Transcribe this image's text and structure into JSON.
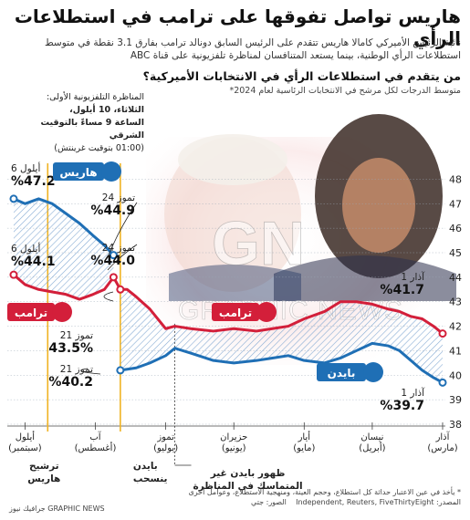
{
  "title": "هاريس تواصل تفوقها على ترامب في استطلاعات الرأي",
  "subtitle": "نائبة الرئيس الأميركي كامالا هاريس تتقدم على الرئيس السابق دونالد ترامب بفارق 3.1 نقطة في متوسط استطلاعات الرأي الوطنية، بينما يستعد المتنافسان لمناظرة تلفزيونية على قناة ABC",
  "question": "من يتقدم في استطلاعات الرأي في الانتخابات الأميركية؟",
  "chart_subtitle": "متوسط الدرجات لكل مرشح في الانتخابات الرئاسية لعام 2024*",
  "debate_note": {
    "line1": "المناظرة التلفزيونية الأولى:",
    "line2": "الثلاثاء، 10 أيلول،",
    "line3": "الساعة 9 مساءً بالتوقيت الشرقي",
    "line4": "(01:00 بتوقيت غرينتش)"
  },
  "colors": {
    "harris": "#1f6fb5",
    "trump": "#d31f3a",
    "biden": "#1f6fb5",
    "event_line": "#f0b323",
    "hatch": "#7aa3cf"
  },
  "chart_data": {
    "type": "line",
    "x_axis": "date (right = March 2024, left = September 2024)",
    "ylim": [
      38,
      48.5
    ],
    "yticks": [
      38,
      39,
      40,
      41,
      42,
      43,
      44,
      45,
      46,
      47,
      48
    ],
    "month_ticks": [
      {
        "label": "آذار",
        "sub": "(مارس)",
        "month": 3
      },
      {
        "label": "نيسان",
        "sub": "(أبريل)",
        "month": 4
      },
      {
        "label": "أيار",
        "sub": "(مايو)",
        "month": 5
      },
      {
        "label": "حزيران",
        "sub": "(يونيو)",
        "month": 6
      },
      {
        "label": "تموز",
        "sub": "(يوليو)",
        "month": 7
      },
      {
        "label": "آب",
        "sub": "(أغسطس)",
        "month": 8
      },
      {
        "label": "أيلول",
        "sub": "(سبتمبر)",
        "month": 9
      }
    ],
    "series": [
      {
        "name": "ترامب",
        "key": "trump",
        "points": [
          [
            "2024-03-01",
            41.7
          ],
          [
            "2024-03-05",
            42.0
          ],
          [
            "2024-03-10",
            42.3
          ],
          [
            "2024-03-15",
            42.4
          ],
          [
            "2024-03-20",
            42.6
          ],
          [
            "2024-03-25",
            42.7
          ],
          [
            "2024-04-01",
            42.9
          ],
          [
            "2024-04-08",
            43.0
          ],
          [
            "2024-04-15",
            43.0
          ],
          [
            "2024-04-22",
            42.6
          ],
          [
            "2024-05-01",
            42.3
          ],
          [
            "2024-05-08",
            42.0
          ],
          [
            "2024-05-15",
            41.9
          ],
          [
            "2024-05-22",
            41.8
          ],
          [
            "2024-06-01",
            41.9
          ],
          [
            "2024-06-10",
            41.8
          ],
          [
            "2024-06-20",
            41.9
          ],
          [
            "2024-06-27",
            42.0
          ],
          [
            "2024-07-01",
            41.9
          ],
          [
            "2024-07-08",
            42.7
          ],
          [
            "2024-07-14",
            43.2
          ],
          [
            "2024-07-18",
            43.5
          ],
          [
            "2024-07-21",
            43.5
          ],
          [
            "2024-07-24",
            44.0
          ],
          [
            "2024-07-28",
            43.5
          ],
          [
            "2024-08-02",
            43.3
          ],
          [
            "2024-08-08",
            43.1
          ],
          [
            "2024-08-14",
            43.3
          ],
          [
            "2024-08-20",
            43.4
          ],
          [
            "2024-08-26",
            43.5
          ],
          [
            "2024-09-01",
            43.7
          ],
          [
            "2024-09-06",
            44.1
          ]
        ]
      },
      {
        "name": "بايدن",
        "key": "biden",
        "points": [
          [
            "2024-03-01",
            39.7
          ],
          [
            "2024-03-05",
            39.9
          ],
          [
            "2024-03-10",
            40.2
          ],
          [
            "2024-03-15",
            40.6
          ],
          [
            "2024-03-20",
            41.0
          ],
          [
            "2024-03-25",
            41.2
          ],
          [
            "2024-04-01",
            41.3
          ],
          [
            "2024-04-08",
            41.0
          ],
          [
            "2024-04-15",
            40.7
          ],
          [
            "2024-04-22",
            40.5
          ],
          [
            "2024-05-01",
            40.6
          ],
          [
            "2024-05-08",
            40.8
          ],
          [
            "2024-05-15",
            40.7
          ],
          [
            "2024-05-22",
            40.6
          ],
          [
            "2024-06-01",
            40.5
          ],
          [
            "2024-06-10",
            40.6
          ],
          [
            "2024-06-20",
            40.9
          ],
          [
            "2024-06-27",
            41.1
          ],
          [
            "2024-07-01",
            40.8
          ],
          [
            "2024-07-08",
            40.5
          ],
          [
            "2024-07-14",
            40.3
          ],
          [
            "2024-07-21",
            40.2
          ]
        ]
      },
      {
        "name": "هاريس",
        "key": "harris",
        "points": [
          [
            "2024-07-24",
            44.9
          ],
          [
            "2024-07-28",
            45.3
          ],
          [
            "2024-08-02",
            45.7
          ],
          [
            "2024-08-08",
            46.2
          ],
          [
            "2024-08-14",
            46.6
          ],
          [
            "2024-08-20",
            47.0
          ],
          [
            "2024-08-26",
            47.2
          ],
          [
            "2024-09-01",
            47.0
          ],
          [
            "2024-09-06",
            47.2
          ]
        ]
      }
    ],
    "annotations": [
      {
        "date_label": "6 أيلول",
        "value_label": "%47.2",
        "series": "harris"
      },
      {
        "date_label": "6 أيلول",
        "value_label": "%44.1",
        "series": "trump"
      },
      {
        "date_label": "24 تموز",
        "value_label": "%44.9",
        "series": "harris"
      },
      {
        "date_label": "24 تموز",
        "value_label": "%44.0",
        "series": "trump"
      },
      {
        "date_label": "21 تموز",
        "value_label": "43.5%",
        "series": "trump"
      },
      {
        "date_label": "21 تموز",
        "value_label": "%40.2",
        "series": "biden"
      },
      {
        "date_label": "1 آذار",
        "value_label": "%41.7",
        "series": "trump"
      },
      {
        "date_label": "1 آذار",
        "value_label": "%39.7",
        "series": "biden"
      }
    ],
    "events": [
      {
        "label_line1": "ترشيح",
        "label_line2": "هاريس",
        "date": "2024-08-22"
      },
      {
        "label_line1": "بايدن",
        "label_line2": "ينسحب",
        "date": "2024-07-21"
      },
      {
        "label_line1": "ظهور بايدن غير",
        "label_line2": "المتماسك في المناظرة",
        "date": "2024-06-27"
      }
    ]
  },
  "source": {
    "note": "* يأخذ في عين الاعتبار حداثة كل استطلاع، وحجم العينة، ومنهجية الاستطلاع، وعوامل أخرى",
    "sources_label": "المصدر:",
    "sources": "Independent, Reuters, FiveThirtyEight",
    "photo": "الصور: جتي"
  },
  "credit": {
    "ar": "جرافيك نيوز",
    "en": "GRAPHIC NEWS"
  },
  "watermark": "GRAPHIC NEWS"
}
